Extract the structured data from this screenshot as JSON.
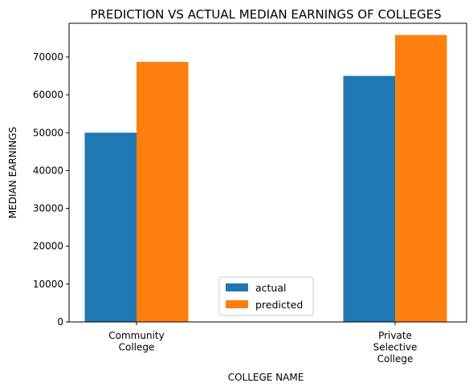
{
  "chart_data": {
    "type": "bar",
    "title": "PREDICTION VS ACTUAL MEDIAN EARNINGS OF COLLEGES",
    "xlabel": "COLLEGE NAME",
    "ylabel": "MEDIAN EARNINGS",
    "categories": [
      [
        "Community",
        "College"
      ],
      [
        "Private",
        "Selective",
        "College"
      ]
    ],
    "series": [
      {
        "name": "actual",
        "color": "#1f77b4",
        "values": [
          50000,
          65000
        ]
      },
      {
        "name": "predicted",
        "color": "#ff7f0e",
        "values": [
          68700,
          75800
        ]
      }
    ],
    "ylim": [
      0,
      78900
    ],
    "yticks": [
      0,
      10000,
      20000,
      30000,
      40000,
      50000,
      60000,
      70000
    ],
    "ytick_labels": [
      "0",
      "10000",
      "20000",
      "30000",
      "40000",
      "50000",
      "60000",
      "70000"
    ],
    "grid": false,
    "legend_position": "lower-center"
  }
}
